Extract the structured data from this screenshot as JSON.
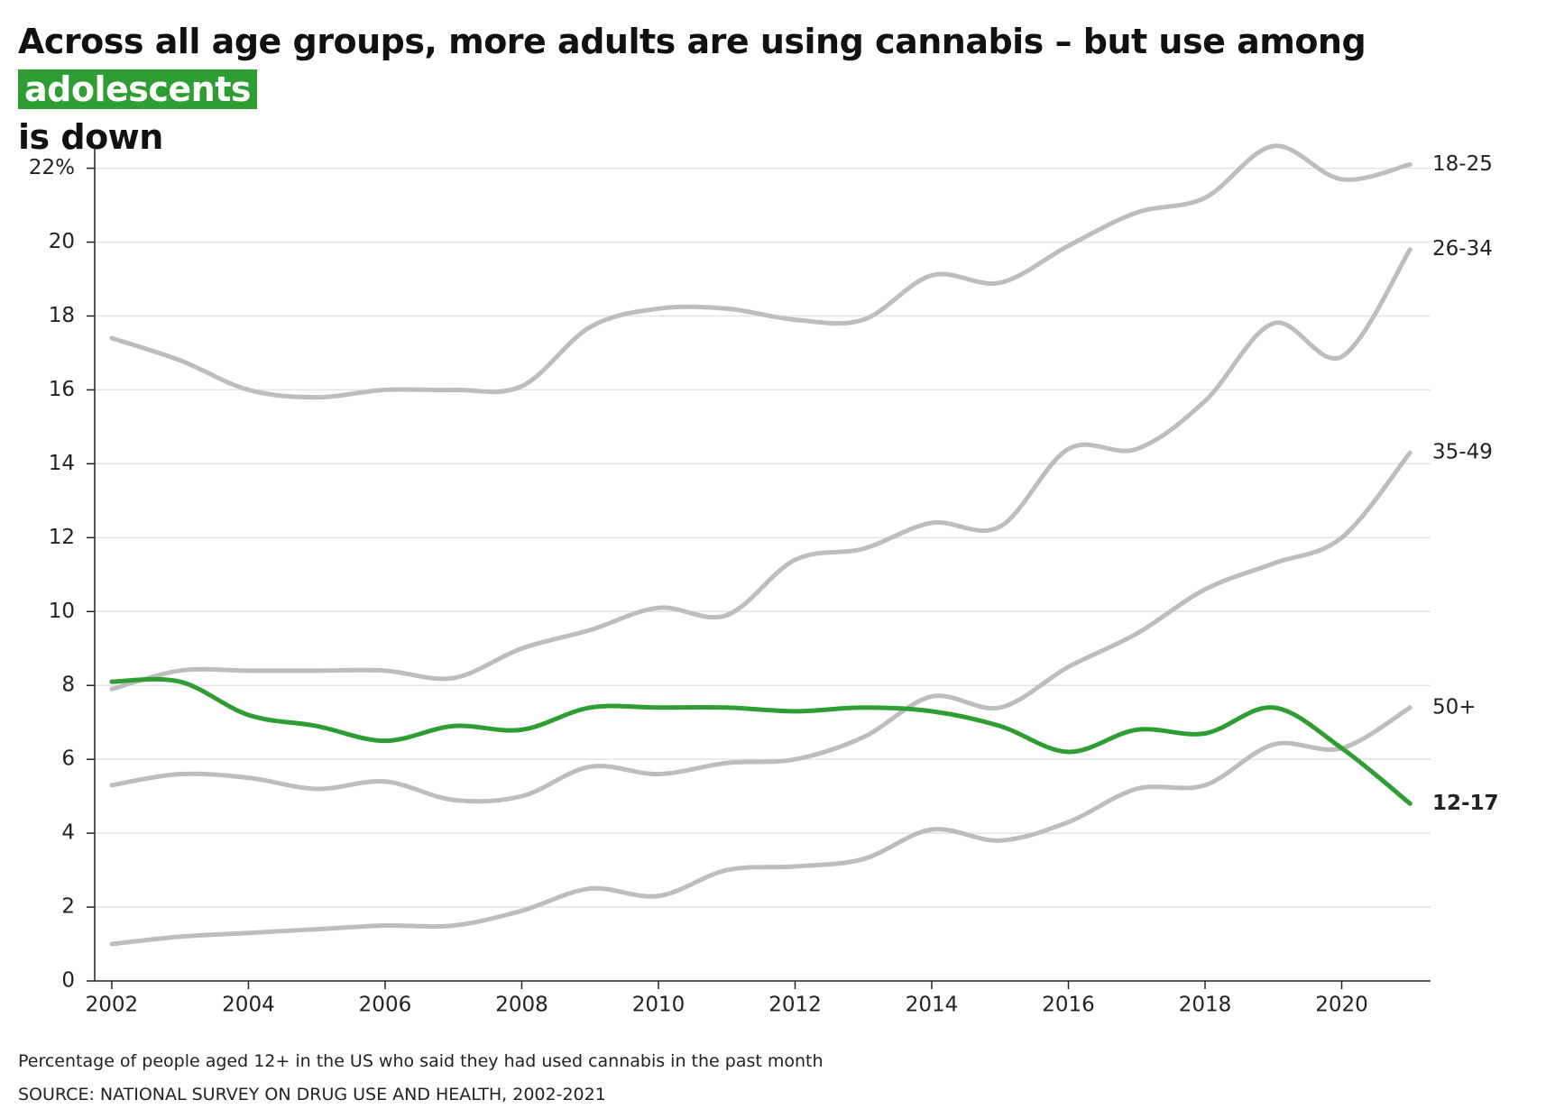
{
  "chart_data": {
    "type": "line",
    "title": "Across all age groups, more adults are using cannabis – but use among",
    "title_highlight": "adolescents",
    "title_end": "is down",
    "note": "Percentage of people aged 12+ in the US who said they had used cannabis in the past month",
    "source": "SOURCE: NATIONAL SURVEY ON DRUG USE AND HEALTH, 2002-2021",
    "highlight_color": "#2e9e32",
    "x": [
      2002,
      2003,
      2004,
      2005,
      2006,
      2007,
      2008,
      2009,
      2010,
      2011,
      2012,
      2013,
      2014,
      2015,
      2016,
      2017,
      2018,
      2019,
      2020,
      2021
    ],
    "xlim": [
      2001.75,
      2021.3
    ],
    "xticks": [
      2002,
      2004,
      2006,
      2008,
      2010,
      2012,
      2014,
      2016,
      2018,
      2020
    ],
    "ylim": [
      0,
      22.6
    ],
    "yticks": [
      0,
      2,
      4,
      6,
      8,
      10,
      12,
      14,
      16,
      18,
      20,
      {
        "value": 22,
        "label": "22%"
      }
    ],
    "grid": true,
    "series": [
      {
        "name": "18-25",
        "color": "#bdbdbd",
        "label_color": "#8a8a8a",
        "values": [
          17.4,
          16.8,
          16.0,
          15.8,
          16.0,
          16.0,
          16.1,
          17.7,
          18.2,
          18.2,
          17.9,
          17.9,
          19.1,
          18.9,
          19.9,
          20.8,
          21.2,
          22.6,
          21.7,
          22.1
        ]
      },
      {
        "name": "26-34",
        "color": "#bdbdbd",
        "label_color": "#8a8a8a",
        "values": [
          7.9,
          8.4,
          8.4,
          8.4,
          8.4,
          8.2,
          9.0,
          9.5,
          10.1,
          9.9,
          11.4,
          11.7,
          12.4,
          12.3,
          14.4,
          14.4,
          15.7,
          17.8,
          16.9,
          19.8
        ]
      },
      {
        "name": "35-49",
        "color": "#bdbdbd",
        "label_color": "#8a8a8a",
        "values": [
          5.3,
          5.6,
          5.5,
          5.2,
          5.4,
          4.9,
          5.0,
          5.8,
          5.6,
          5.9,
          6.0,
          6.6,
          7.7,
          7.4,
          8.5,
          9.4,
          10.6,
          11.3,
          12.0,
          14.3
        ]
      },
      {
        "name": "50+",
        "color": "#bdbdbd",
        "label_color": "#8a8a8a",
        "values": [
          1.0,
          1.2,
          1.3,
          1.4,
          1.5,
          1.5,
          1.9,
          2.5,
          2.3,
          3.0,
          3.1,
          3.3,
          4.1,
          3.8,
          4.3,
          5.2,
          5.3,
          6.4,
          6.3,
          7.4
        ]
      },
      {
        "name": "12-17",
        "color": "#2e9e32",
        "label_color": "#1e8f22",
        "bold": true,
        "values": [
          8.1,
          8.1,
          7.2,
          6.9,
          6.5,
          6.9,
          6.8,
          7.4,
          7.4,
          7.4,
          7.3,
          7.4,
          7.3,
          6.9,
          6.2,
          6.8,
          6.7,
          7.4,
          6.3,
          4.8
        ]
      }
    ]
  }
}
